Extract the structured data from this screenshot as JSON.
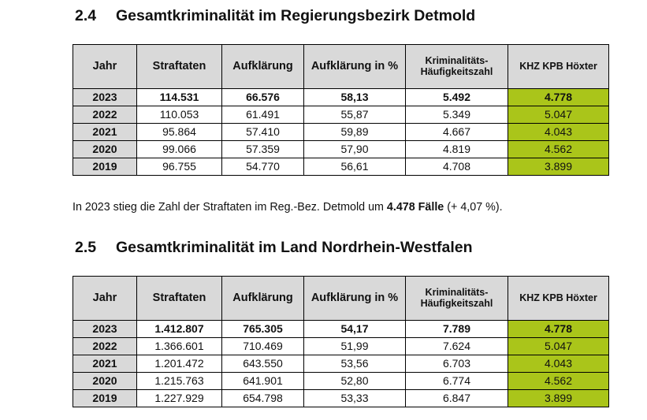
{
  "sections": [
    {
      "number": "2.4",
      "title": "Gesamtkriminalität im Regierungsbezirk Detmold",
      "headers": [
        "Jahr",
        "Straftaten",
        "Aufklärung",
        "Aufklärung in %",
        "Kriminalitäts-Häufigkeitszahl",
        "KHZ KPB Höxter"
      ],
      "rows": [
        [
          "2023",
          "114.531",
          "66.576",
          "58,13",
          "5.492",
          "4.778"
        ],
        [
          "2022",
          "110.053",
          "61.491",
          "55,87",
          "5.349",
          "5.047"
        ],
        [
          "2021",
          "95.864",
          "57.410",
          "59,89",
          "4.667",
          "4.043"
        ],
        [
          "2020",
          "99.066",
          "57.359",
          "57,90",
          "4.819",
          "4.562"
        ],
        [
          "2019",
          "96.755",
          "54.770",
          "56,61",
          "4.708",
          "3.899"
        ]
      ]
    },
    {
      "number": "2.5",
      "title": "Gesamtkriminalität im Land Nordrhein-Westfalen",
      "headers": [
        "Jahr",
        "Straftaten",
        "Aufklärung",
        "Aufklärung in %",
        "Kriminalitäts-Häufigkeitszahl",
        "KHZ KPB Höxter"
      ],
      "rows": [
        [
          "2023",
          "1.412.807",
          "765.305",
          "54,17",
          "7.789",
          "4.778"
        ],
        [
          "2022",
          "1.366.601",
          "710.469",
          "51,99",
          "7.624",
          "5.047"
        ],
        [
          "2021",
          "1.201.472",
          "643.550",
          "53,56",
          "6.703",
          "4.043"
        ],
        [
          "2020",
          "1.215.763",
          "641.901",
          "52,80",
          "6.774",
          "4.562"
        ],
        [
          "2019",
          "1.227.929",
          "654.798",
          "53,33",
          "6.847",
          "3.899"
        ]
      ]
    }
  ],
  "summary": {
    "prefix": "In 2023 stieg die Zahl der Straftaten im Reg.-Bez. Detmold um ",
    "highlight": "4.478 Fälle",
    "suffix": " (+ 4,07 %)."
  },
  "colors": {
    "header_bg": "#d9d9d9",
    "khz_bg": "#aac51a"
  }
}
